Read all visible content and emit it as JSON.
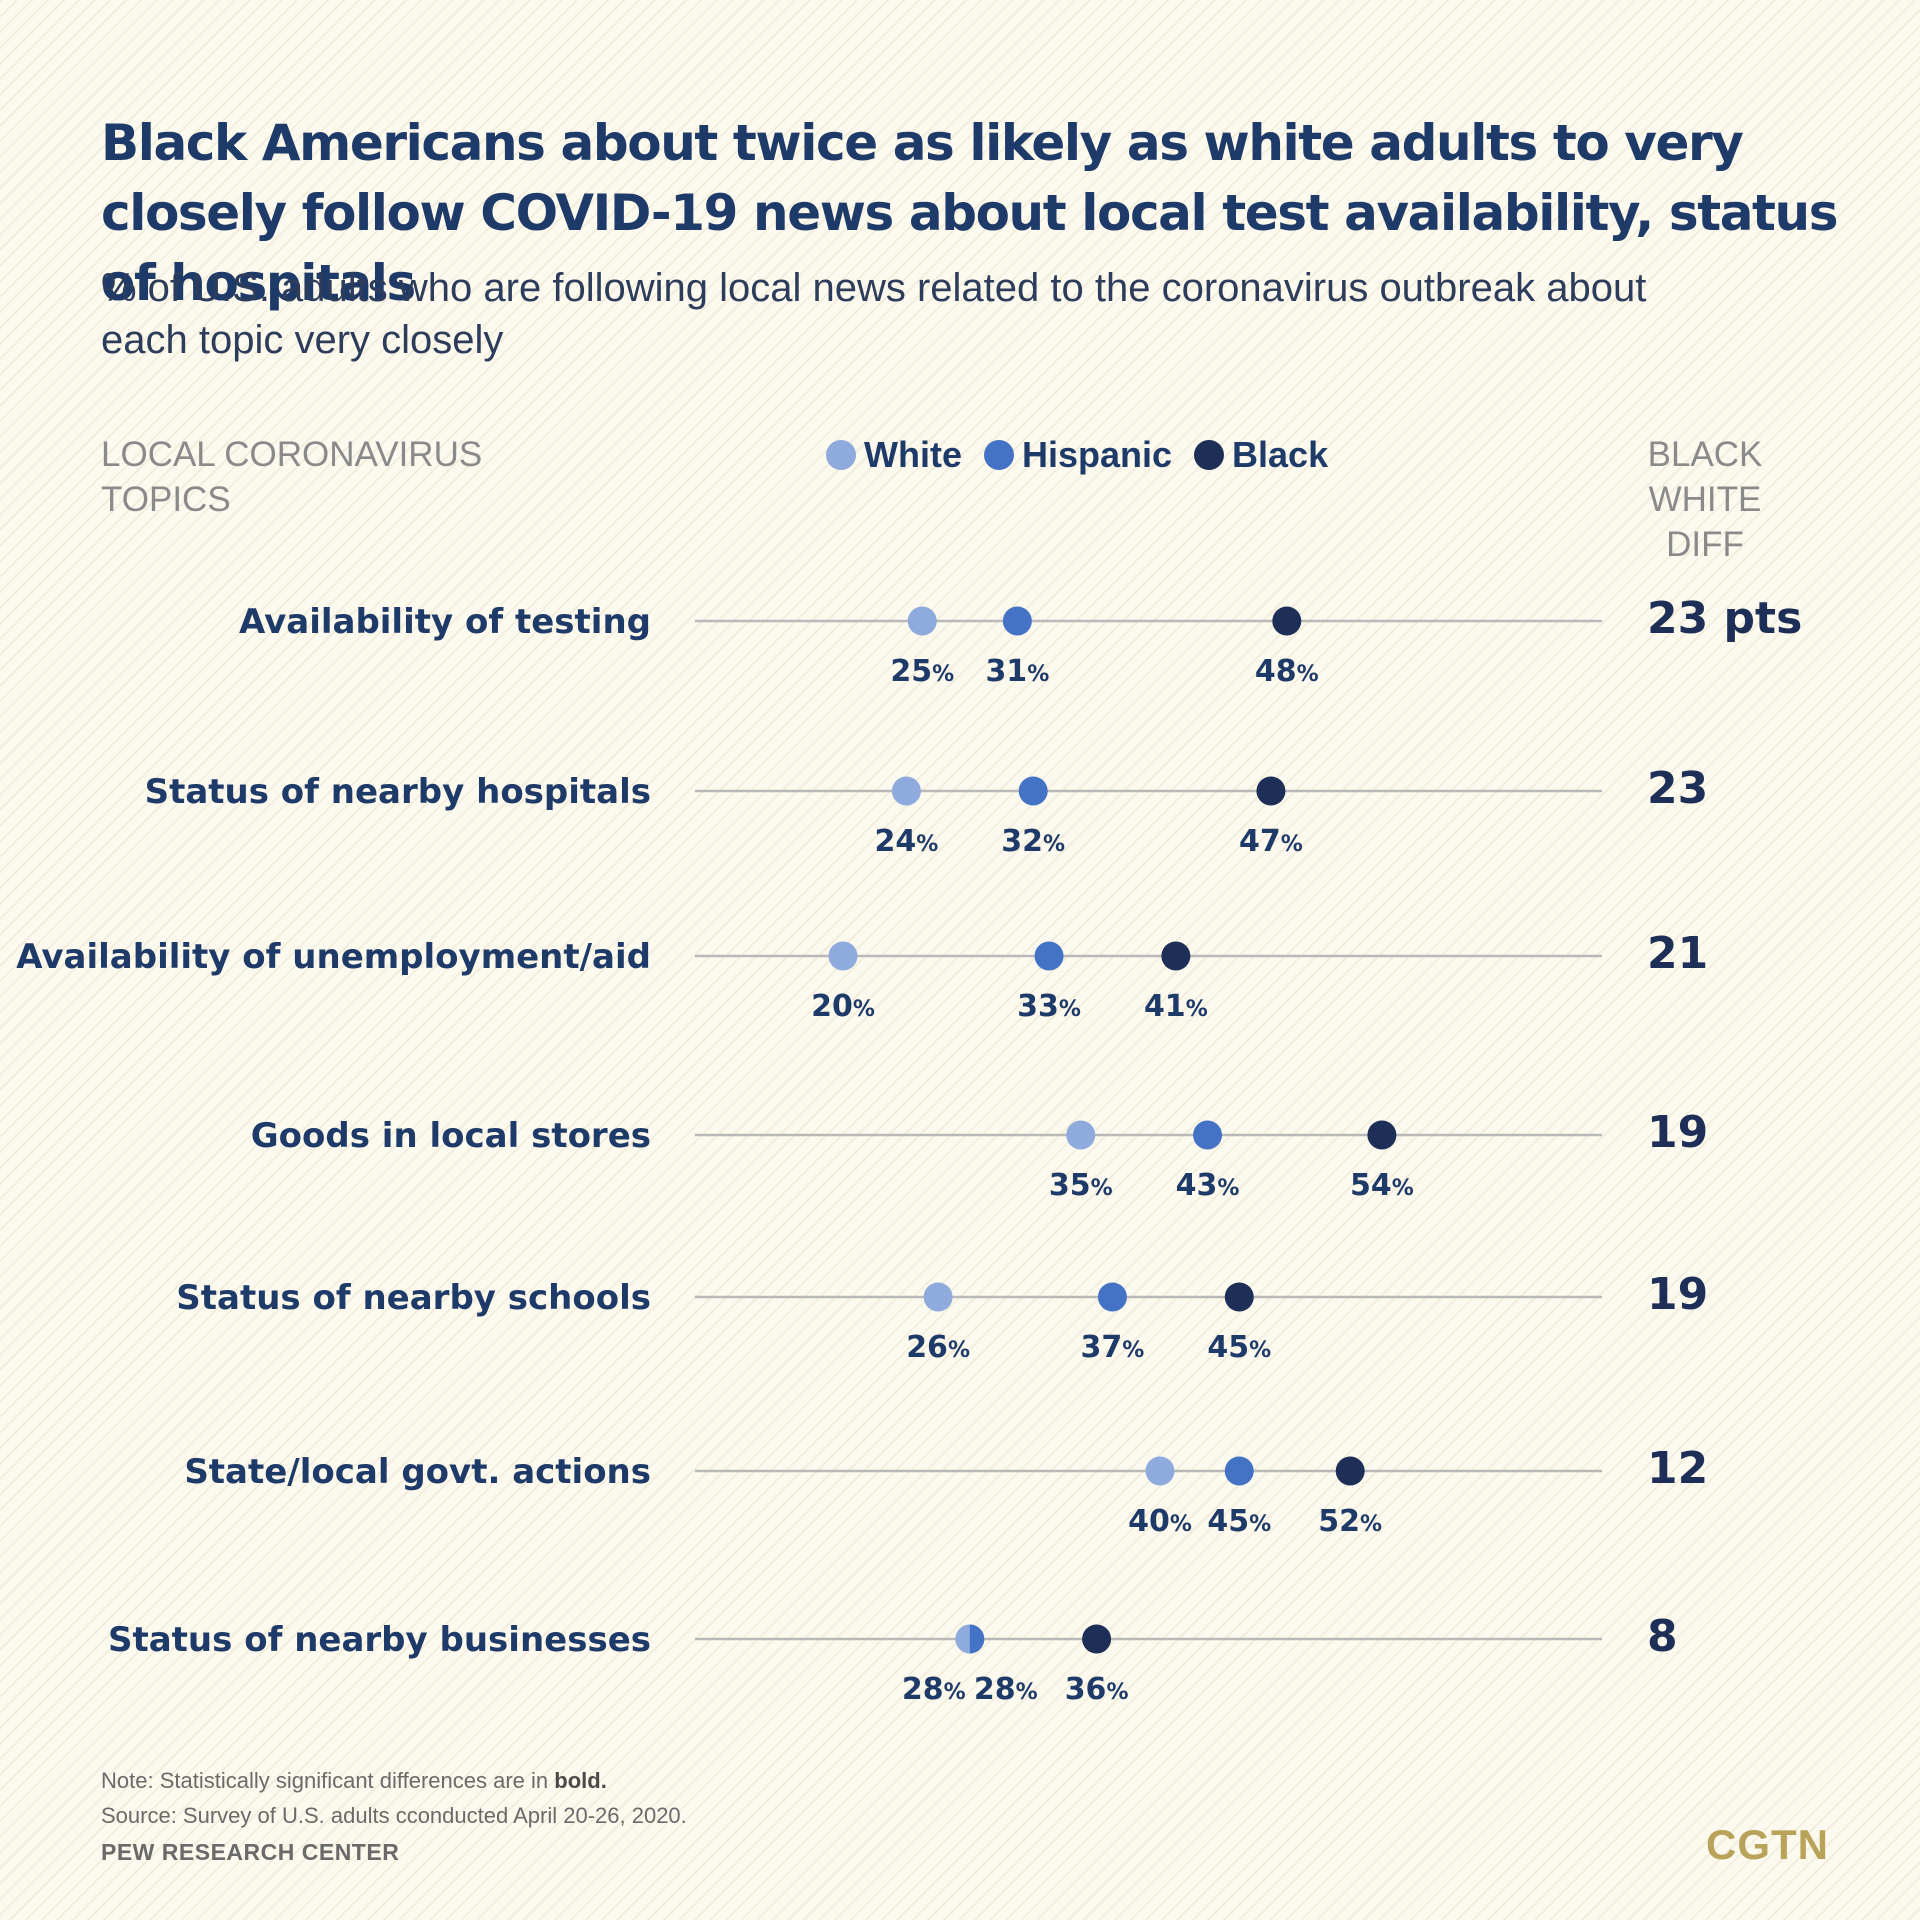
{
  "chart_data": {
    "type": "scatter",
    "title": "Black Americans about twice as likely as white adults to very closely follow COVID-19 news about local test availability, status of hospitals",
    "subtitle": "% of U.S. adults who are following local news related to the coronavirus outbreak about each topic very closely",
    "column_header_left": "LOCAL CORONAVIRUS\nTOPICS",
    "column_header_right": "BLACK\nWHITE\nDIFF",
    "value_suffix": "%",
    "categories": [
      "Availability of testing",
      "Status of nearby hospitals",
      "Availability of unemployment/aid",
      "Goods in local stores",
      "Status of nearby schools",
      "State/local govt. actions",
      "Status of nearby businesses"
    ],
    "series": [
      {
        "name": "White",
        "color": "#8faadc",
        "values": [
          25,
          24,
          20,
          35,
          26,
          40,
          28
        ]
      },
      {
        "name": "Hispanic",
        "color": "#4472c4",
        "values": [
          31,
          32,
          33,
          43,
          37,
          45,
          28
        ]
      },
      {
        "name": "Black",
        "color": "#1d2e57",
        "values": [
          48,
          47,
          41,
          54,
          45,
          52,
          36
        ]
      }
    ],
    "differences": [
      "23 pts",
      "23",
      "21",
      "19",
      "19",
      "12",
      "8"
    ],
    "legend": "top-center",
    "grid": false
  },
  "footer": {
    "note_prefix": "Note: Statistically significant differences are in",
    "note_bold": "bold.",
    "source": "Source: Survey of U.S. adults cconducted April 20-26, 2020.",
    "brand": "PEW RESEARCH CENTER"
  },
  "logo": "CGTN"
}
